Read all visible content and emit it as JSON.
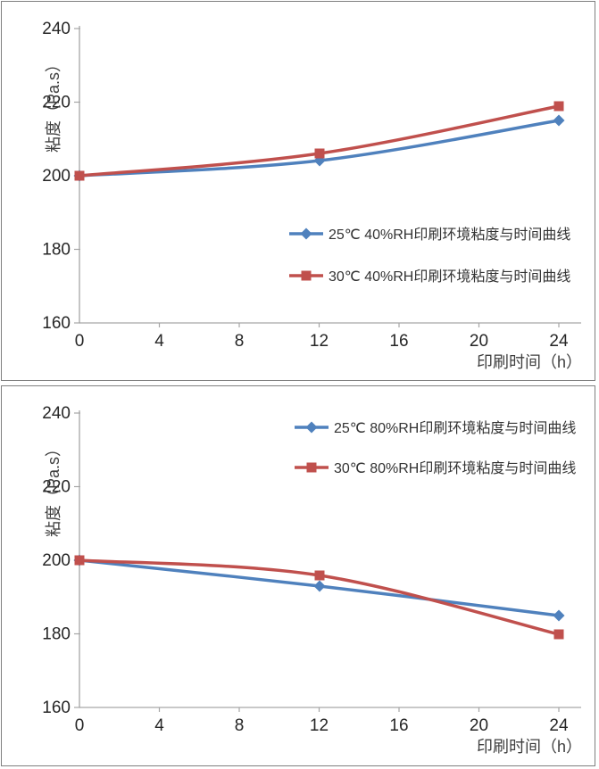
{
  "page": {
    "background": "#ffffff",
    "panel_border_color": "#7f7f7f"
  },
  "colors": {
    "axis": "#a6a6a6",
    "tick_text": "#262626",
    "title_text": "#3f3f3f",
    "legend_text": "#333333",
    "series_blue": "#4f81bd",
    "series_red": "#c0504d"
  },
  "chart_data": [
    {
      "type": "line",
      "title": "",
      "xlabel": "印刷时间（h）",
      "ylabel": "粘度（Pa.s）",
      "x": [
        0,
        12,
        24
      ],
      "xticks": [
        0,
        4,
        8,
        12,
        16,
        20,
        24
      ],
      "yticks": [
        160,
        180,
        200,
        220,
        240
      ],
      "xlim": [
        0,
        24
      ],
      "ylim": [
        160,
        240
      ],
      "grid": false,
      "legend_position": "inside-right-middle",
      "series": [
        {
          "name": "25℃ 40%RH印刷环境粘度与时间曲线",
          "color": "#4f81bd",
          "marker": "diamond",
          "values": [
            200,
            204,
            215
          ]
        },
        {
          "name": "30℃ 40%RH印刷环境粘度与时间曲线",
          "color": "#c0504d",
          "marker": "square",
          "values": [
            200,
            206,
            219
          ]
        }
      ]
    },
    {
      "type": "line",
      "title": "",
      "xlabel": "印刷时间（h）",
      "ylabel": "粘度（Pa.s）",
      "x": [
        0,
        12,
        24
      ],
      "xticks": [
        0,
        4,
        8,
        12,
        16,
        20,
        24
      ],
      "yticks": [
        160,
        180,
        200,
        220,
        240
      ],
      "xlim": [
        0,
        24
      ],
      "ylim": [
        160,
        240
      ],
      "grid": false,
      "legend_position": "inside-right-top",
      "series": [
        {
          "name": "25℃ 80%RH印刷环境粘度与时间曲线",
          "color": "#4f81bd",
          "marker": "diamond",
          "values": [
            200,
            193,
            185
          ]
        },
        {
          "name": "30℃ 80%RH印刷环境粘度与时间曲线",
          "color": "#c0504d",
          "marker": "square",
          "values": [
            200,
            196,
            180
          ]
        }
      ]
    }
  ]
}
